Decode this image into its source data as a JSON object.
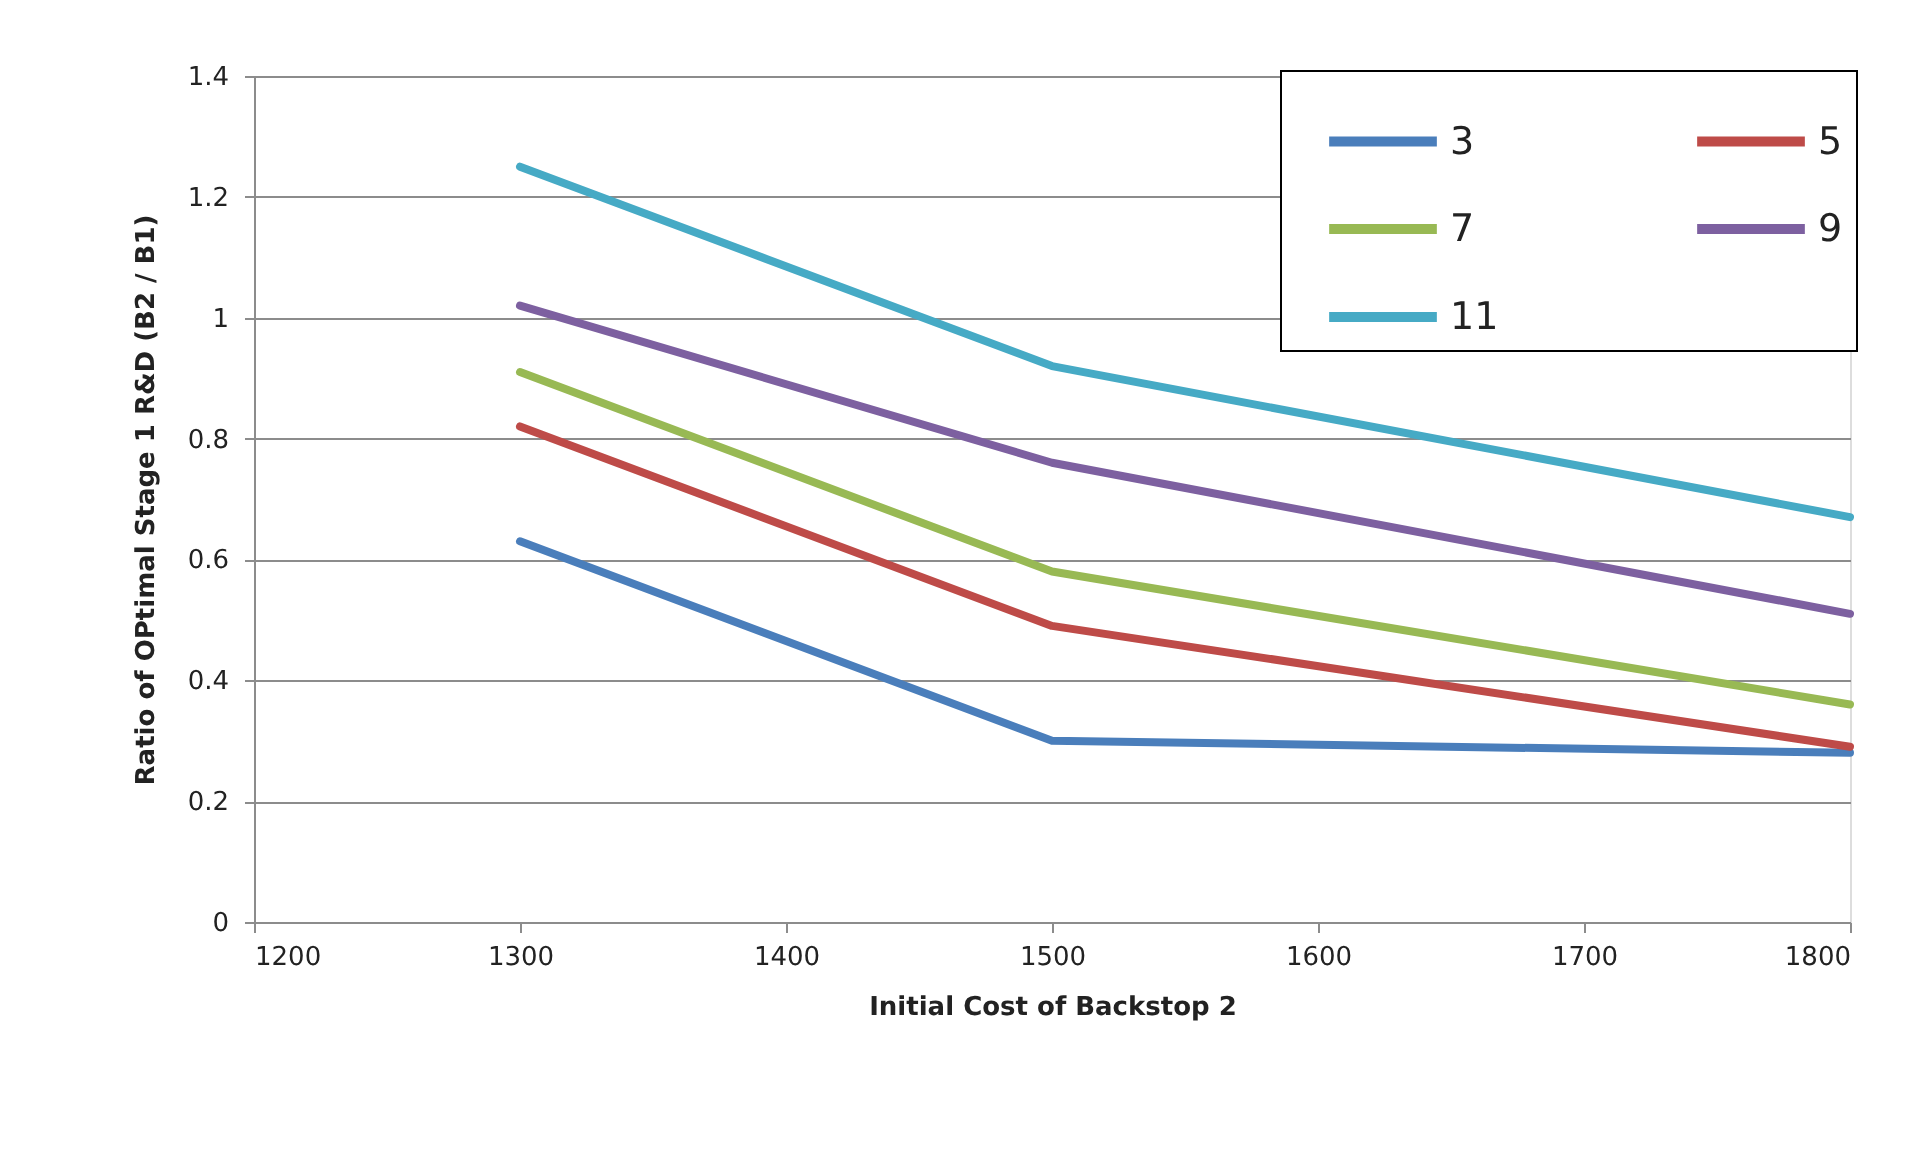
{
  "chart_data": {
    "type": "line",
    "xlabel": "Initial Cost of Backstop 2",
    "ylabel": "Ratio of OPtimal Stage 1 R&D (B2 / B1)",
    "x": [
      1300,
      1500,
      1800
    ],
    "series": [
      {
        "name": "3",
        "color": "#4a7ebb",
        "values": [
          0.63,
          0.3,
          0.28
        ]
      },
      {
        "name": "5",
        "color": "#be4b48",
        "values": [
          0.82,
          0.49,
          0.29
        ]
      },
      {
        "name": "7",
        "color": "#98b954",
        "values": [
          0.91,
          0.58,
          0.36
        ]
      },
      {
        "name": "9",
        "color": "#7d60a0",
        "values": [
          1.02,
          0.76,
          0.51
        ]
      },
      {
        "name": "11",
        "color": "#46aac5",
        "values": [
          1.25,
          0.92,
          0.67
        ]
      }
    ],
    "xlim": [
      1200,
      1800
    ],
    "xticks": [
      1200,
      1300,
      1400,
      1500,
      1600,
      1700,
      1800
    ],
    "ylim": [
      0,
      1.4
    ],
    "yticks": [
      0,
      0.2,
      0.4,
      0.6,
      0.8,
      1,
      1.2,
      1.4
    ],
    "grid": "y",
    "legend": "top right",
    "line_style": "solid"
  }
}
